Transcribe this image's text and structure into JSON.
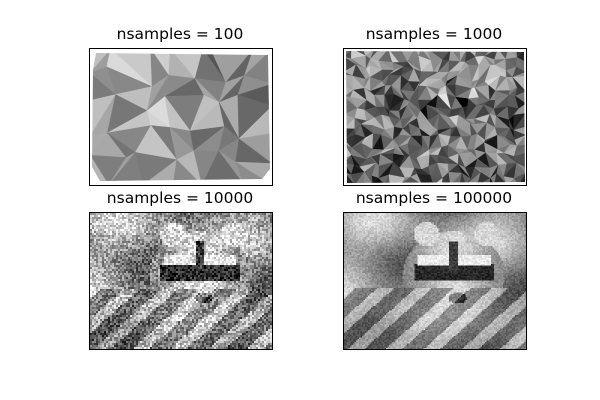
{
  "figure": {
    "background": "#ffffff",
    "colormap": "gray"
  },
  "chart_data": [
    {
      "type": "heatmap",
      "title": "nsamples = 100",
      "nsamples": 100,
      "colormap": "gray",
      "axes_visible": false,
      "grid": false,
      "content": "image reconstructed by interpolation from scattered samples (coarse triangular facets)"
    },
    {
      "type": "heatmap",
      "title": "nsamples = 1000",
      "nsamples": 1000,
      "colormap": "gray",
      "axes_visible": false,
      "grid": false,
      "content": "image reconstructed by interpolation from scattered samples (finer facets)"
    },
    {
      "type": "heatmap",
      "title": "nsamples = 10000",
      "nsamples": 10000,
      "colormap": "gray",
      "axes_visible": false,
      "grid": false,
      "content": "raccoon face image, noisy interpolation"
    },
    {
      "type": "heatmap",
      "title": "nsamples = 100000",
      "nsamples": 100000,
      "colormap": "gray",
      "axes_visible": false,
      "grid": false,
      "content": "raccoon face image, near full detail"
    }
  ]
}
